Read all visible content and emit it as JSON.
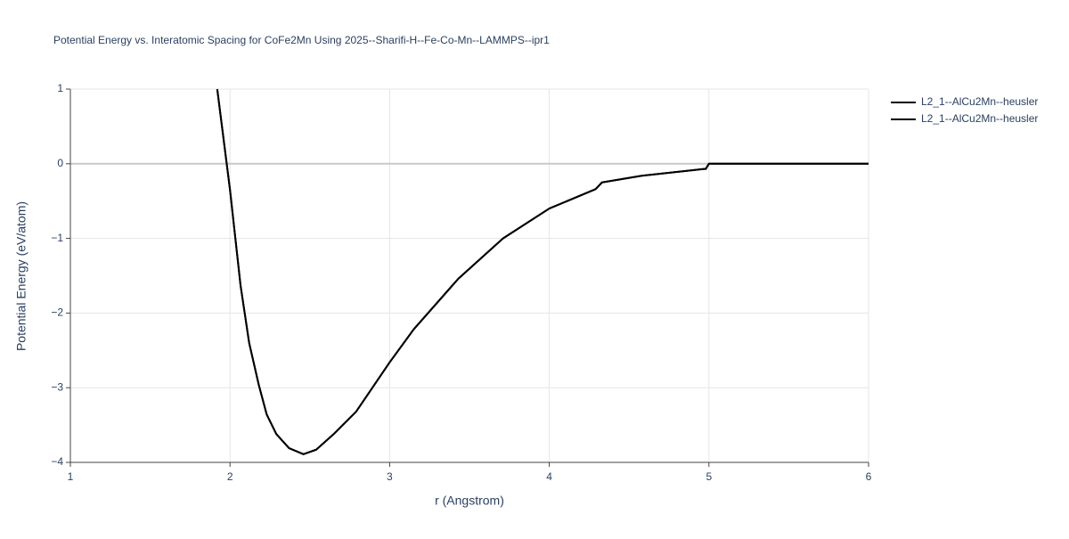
{
  "chart_data": {
    "type": "line",
    "title": "Potential Energy vs. Interatomic Spacing for CoFe2Mn Using 2025--Sharifi-H--Fe-Co-Mn--LAMMPS--ipr1",
    "x_label": "r (Angstrom)",
    "y_label": "Potential Energy (eV/atom)",
    "x": [
      1.92,
      2.0,
      2.066,
      2.12,
      2.18,
      2.23,
      2.29,
      2.37,
      2.46,
      2.54,
      2.65,
      2.79,
      3.0,
      3.15,
      3.43,
      3.71,
      4.0,
      4.29,
      4.33,
      4.58,
      4.97,
      4.98,
      5.0,
      6.0
    ],
    "series": [
      {
        "name": "L2_1--AlCu2Mn--heusler",
        "color": "#000000",
        "values": [
          1.0,
          -0.35,
          -1.63,
          -2.4,
          -2.96,
          -3.36,
          -3.62,
          -3.81,
          -3.89,
          -3.83,
          -3.62,
          -3.32,
          -2.66,
          -2.22,
          -1.54,
          -1.0,
          -0.6,
          -0.34,
          -0.25,
          -0.16,
          -0.07,
          -0.07,
          0.0,
          0.0
        ]
      },
      {
        "name": "L2_1--AlCu2Mn--heusler",
        "color": "#000000",
        "values": [
          1.0,
          -0.35,
          -1.63,
          -2.4,
          -2.96,
          -3.36,
          -3.62,
          -3.81,
          -3.89,
          -3.83,
          -3.62,
          -3.32,
          -2.66,
          -2.22,
          -1.54,
          -1.0,
          -0.6,
          -0.34,
          -0.25,
          -0.16,
          -0.07,
          -0.07,
          0.0,
          0.0
        ]
      }
    ],
    "xlim": [
      1,
      6
    ],
    "xticks": [
      1,
      2,
      3,
      4,
      5,
      6
    ],
    "ylim": [
      -4,
      1
    ],
    "yticks": [
      {
        "value": -4,
        "label": "−4"
      },
      {
        "value": -3,
        "label": "−3"
      },
      {
        "value": -2,
        "label": "−2"
      },
      {
        "value": -1,
        "label": "−1"
      },
      0,
      1
    ],
    "grid": true
  }
}
